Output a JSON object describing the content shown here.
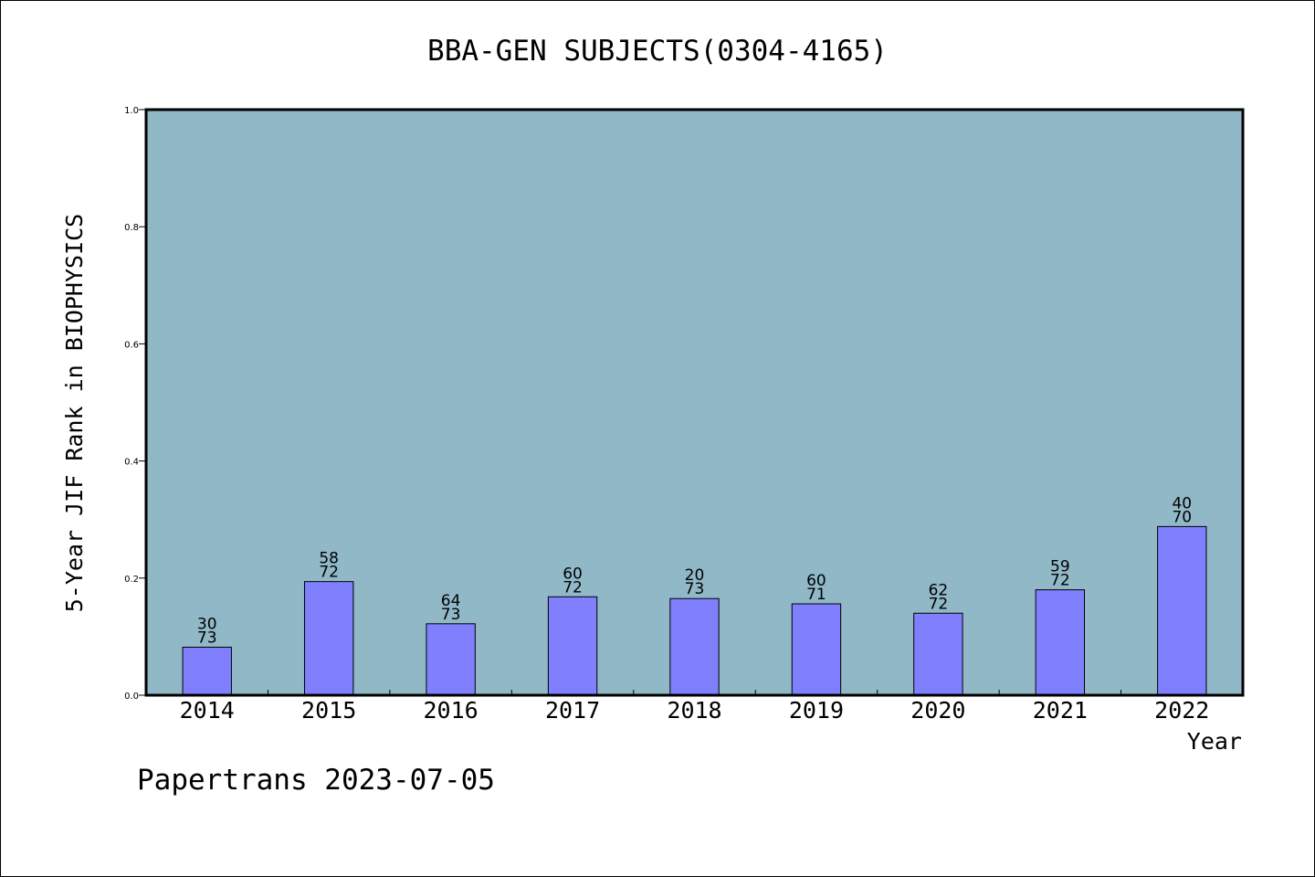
{
  "chart_data": {
    "type": "bar",
    "title": "BBA-GEN SUBJECTS(0304-4165)",
    "xlabel": "Year",
    "ylabel": "5-Year JIF Rank in BIOPHYSICS",
    "ylim": [
      0,
      1.0
    ],
    "yticks": [
      "0.0",
      "0.2",
      "0.4",
      "0.6",
      "0.8",
      "1.0"
    ],
    "categories": [
      "2014",
      "2015",
      "2016",
      "2017",
      "2018",
      "2019",
      "2020",
      "2021",
      "2022"
    ],
    "values": [
      0.082,
      0.194,
      0.122,
      0.168,
      0.165,
      0.156,
      0.14,
      0.18,
      0.288
    ],
    "rank": [
      "30",
      "58",
      "64",
      "60",
      "20",
      "60",
      "62",
      "59",
      "40"
    ],
    "total": [
      "73",
      "72",
      "73",
      "72",
      "73",
      "71",
      "72",
      "72",
      "70"
    ],
    "grid": false,
    "colors": {
      "plot_bg": "#90b8c6",
      "bar": "#8080ff",
      "bar_edge": "#000000"
    }
  },
  "footer": {
    "text": "Papertrans 2023-07-05"
  }
}
